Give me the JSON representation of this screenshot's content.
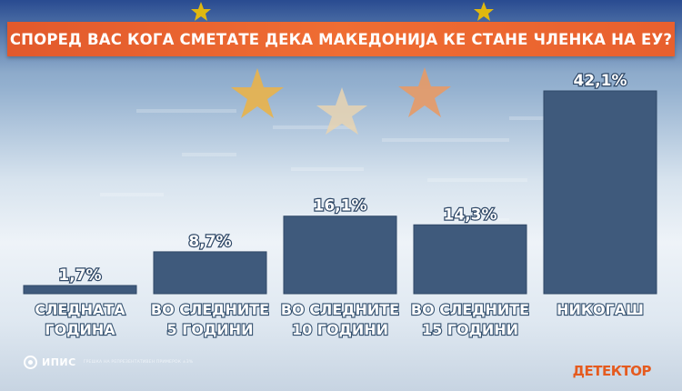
{
  "colors": {
    "title_bar": "#e8602e",
    "bar": "#3f5a7c",
    "label": "#ffffff",
    "logo": "#e55b1f"
  },
  "chart_data": {
    "type": "bar",
    "title": "СПОРЕД ВАС КОГА СМЕТАТЕ ДЕКА МАКЕДОНИЈА КЕ СТАНЕ ЧЛЕНКА НА ЕУ?",
    "categories": [
      [
        "СЛЕДНАТА",
        "ГОДИНА"
      ],
      [
        "ВО СЛЕДНИТЕ",
        "5 ГОДИНИ"
      ],
      [
        "ВО СЛЕДНИТЕ",
        "10 ГОДИНИ"
      ],
      [
        "ВО СЛЕДНИТЕ",
        "15 ГОДИНИ"
      ],
      [
        "НИКОГАШ"
      ]
    ],
    "values": [
      1.7,
      8.7,
      16.1,
      14.3,
      42.1
    ],
    "value_labels": [
      "1,7%",
      "8,7%",
      "16,1%",
      "14,3%",
      "42,1%"
    ],
    "ylim": [
      0,
      42.1
    ],
    "grid": false,
    "legend": "none"
  },
  "footer": {
    "source_name": "ИПИС",
    "source_note": "ГРЕШКА НА РЕПРЕЗЕНТАТИВЕН ПРИМЕРОК ±3%",
    "logo_text": "ДЕТЕКТОР"
  }
}
